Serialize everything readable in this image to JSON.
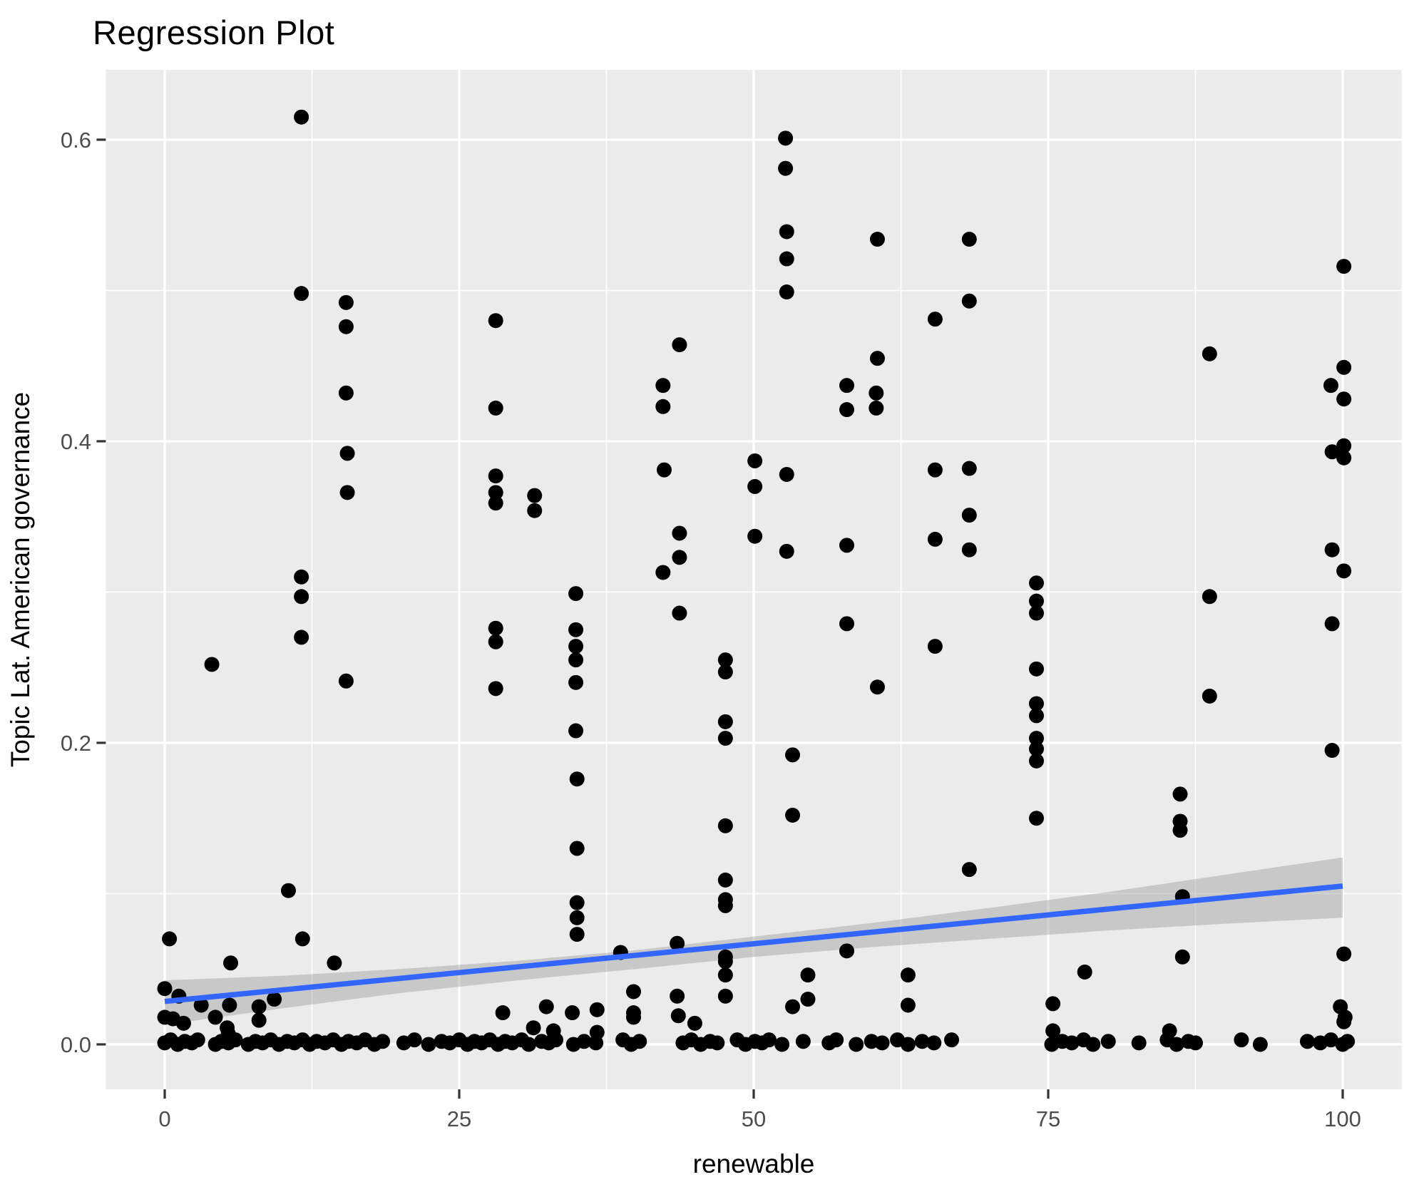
{
  "title": "Regression Plot",
  "chart_data": {
    "type": "scatter",
    "title": "Regression Plot",
    "xlabel": "renewable",
    "ylabel": "Topic Lat. American governance",
    "x_ticks": [
      0,
      25,
      50,
      75,
      100
    ],
    "x_tick_labels": [
      "0",
      "25",
      "50",
      "75",
      "100"
    ],
    "y_ticks": [
      0.0,
      0.2,
      0.4,
      0.6
    ],
    "y_tick_labels": [
      "0.0",
      "0.2",
      "0.4",
      "0.6"
    ],
    "x_minor_ticks": [
      12.5,
      37.5,
      62.5,
      87.5
    ],
    "y_minor_ticks": [
      0.1,
      0.3,
      0.5
    ],
    "xlim": [
      -5,
      105
    ],
    "ylim": [
      -0.0298,
      0.6463
    ],
    "grid": "white major and minor gridlines on grey panel",
    "legend_position": "none",
    "colors": {
      "panel_background": "#EBEBEB",
      "grid": "#FFFFFF",
      "point": "#000000",
      "regression_line": "#3366FF",
      "confidence_band": "#999999",
      "confidence_band_opacity": 0.42,
      "tick_label": "#4D4D4D",
      "tick_mark": "#333333",
      "axis_title": "#000000",
      "title": "#000000"
    },
    "regression_line": [
      [
        0,
        0.0285
      ],
      [
        100,
        0.105
      ]
    ],
    "confidence_band_upper": [
      [
        0,
        0.0425
      ],
      [
        10,
        0.0455
      ],
      [
        20,
        0.05
      ],
      [
        30,
        0.0555
      ],
      [
        40,
        0.0625
      ],
      [
        50,
        0.0715
      ],
      [
        60,
        0.0805
      ],
      [
        70,
        0.0905
      ],
      [
        80,
        0.101
      ],
      [
        90,
        0.1125
      ],
      [
        100,
        0.124
      ]
    ],
    "confidence_band_lower": [
      [
        0,
        0.013
      ],
      [
        10,
        0.024
      ],
      [
        20,
        0.034
      ],
      [
        30,
        0.0425
      ],
      [
        40,
        0.05
      ],
      [
        50,
        0.058
      ],
      [
        60,
        0.0645
      ],
      [
        70,
        0.07
      ],
      [
        80,
        0.0755
      ],
      [
        90,
        0.08
      ],
      [
        100,
        0.084
      ]
    ],
    "points": [
      [
        11.6,
        0.615
      ],
      [
        11.6,
        0.498
      ],
      [
        15.4,
        0.492
      ],
      [
        15.4,
        0.476
      ],
      [
        15.4,
        0.432
      ],
      [
        52.7,
        0.601
      ],
      [
        52.7,
        0.581
      ],
      [
        52.8,
        0.539
      ],
      [
        52.8,
        0.521
      ],
      [
        52.8,
        0.499
      ],
      [
        28.1,
        0.48
      ],
      [
        43.7,
        0.464
      ],
      [
        42.3,
        0.437
      ],
      [
        42.3,
        0.423
      ],
      [
        60.5,
        0.534
      ],
      [
        68.3,
        0.534
      ],
      [
        68.3,
        0.493
      ],
      [
        65.4,
        0.481
      ],
      [
        60.5,
        0.455
      ],
      [
        57.9,
        0.437
      ],
      [
        60.4,
        0.432
      ],
      [
        57.9,
        0.421
      ],
      [
        60.4,
        0.422
      ],
      [
        100.1,
        0.516
      ],
      [
        88.7,
        0.458
      ],
      [
        100.1,
        0.449
      ],
      [
        99.0,
        0.437
      ],
      [
        100.1,
        0.428
      ],
      [
        15.5,
        0.392
      ],
      [
        15.5,
        0.366
      ],
      [
        11.6,
        0.31
      ],
      [
        11.6,
        0.297
      ],
      [
        11.6,
        0.27
      ],
      [
        4.0,
        0.252
      ],
      [
        15.4,
        0.241
      ],
      [
        28.1,
        0.422
      ],
      [
        28.1,
        0.377
      ],
      [
        28.1,
        0.366
      ],
      [
        28.1,
        0.359
      ],
      [
        31.4,
        0.364
      ],
      [
        31.4,
        0.354
      ],
      [
        42.4,
        0.381
      ],
      [
        50.1,
        0.387
      ],
      [
        50.1,
        0.37
      ],
      [
        52.8,
        0.378
      ],
      [
        43.7,
        0.339
      ],
      [
        50.1,
        0.337
      ],
      [
        43.7,
        0.323
      ],
      [
        42.3,
        0.313
      ],
      [
        52.8,
        0.327
      ],
      [
        34.9,
        0.299
      ],
      [
        43.7,
        0.286
      ],
      [
        28.1,
        0.276
      ],
      [
        28.1,
        0.267
      ],
      [
        34.9,
        0.275
      ],
      [
        34.9,
        0.264
      ],
      [
        34.9,
        0.255
      ],
      [
        34.9,
        0.24
      ],
      [
        28.1,
        0.236
      ],
      [
        47.6,
        0.255
      ],
      [
        47.6,
        0.247
      ],
      [
        34.9,
        0.208
      ],
      [
        47.6,
        0.214
      ],
      [
        47.6,
        0.203
      ],
      [
        65.4,
        0.381
      ],
      [
        68.3,
        0.382
      ],
      [
        68.3,
        0.351
      ],
      [
        65.4,
        0.335
      ],
      [
        57.9,
        0.331
      ],
      [
        68.3,
        0.328
      ],
      [
        74.0,
        0.306
      ],
      [
        74.0,
        0.294
      ],
      [
        74.0,
        0.286
      ],
      [
        57.9,
        0.279
      ],
      [
        65.4,
        0.264
      ],
      [
        60.5,
        0.237
      ],
      [
        74.0,
        0.249
      ],
      [
        74.0,
        0.226
      ],
      [
        74.0,
        0.218
      ],
      [
        74.0,
        0.203
      ],
      [
        74.0,
        0.196
      ],
      [
        74.0,
        0.188
      ],
      [
        99.1,
        0.393
      ],
      [
        100.1,
        0.397
      ],
      [
        100.1,
        0.389
      ],
      [
        99.1,
        0.328
      ],
      [
        100.1,
        0.314
      ],
      [
        88.7,
        0.297
      ],
      [
        99.1,
        0.279
      ],
      [
        88.7,
        0.231
      ],
      [
        99.1,
        0.195
      ],
      [
        10.5,
        0.102
      ],
      [
        0.4,
        0.07
      ],
      [
        11.7,
        0.07
      ],
      [
        5.6,
        0.054
      ],
      [
        14.4,
        0.054
      ],
      [
        0.0,
        0.037
      ],
      [
        1.2,
        0.032
      ],
      [
        3.1,
        0.026
      ],
      [
        5.5,
        0.026
      ],
      [
        8.0,
        0.025
      ],
      [
        9.3,
        0.03
      ],
      [
        4.3,
        0.018
      ],
      [
        0.0,
        0.018
      ],
      [
        0.7,
        0.017
      ],
      [
        1.6,
        0.014
      ],
      [
        8.0,
        0.016
      ],
      [
        5.3,
        0.011
      ],
      [
        5.4,
        0.007
      ],
      [
        35.0,
        0.176
      ],
      [
        53.3,
        0.192
      ],
      [
        53.3,
        0.152
      ],
      [
        47.6,
        0.145
      ],
      [
        35.0,
        0.13
      ],
      [
        47.6,
        0.109
      ],
      [
        35.0,
        0.094
      ],
      [
        47.6,
        0.096
      ],
      [
        47.6,
        0.092
      ],
      [
        35.0,
        0.084
      ],
      [
        35.0,
        0.073
      ],
      [
        43.5,
        0.067
      ],
      [
        38.7,
        0.061
      ],
      [
        47.6,
        0.058
      ],
      [
        47.6,
        0.055
      ],
      [
        47.6,
        0.046
      ],
      [
        39.8,
        0.035
      ],
      [
        43.5,
        0.032
      ],
      [
        47.6,
        0.032
      ],
      [
        54.6,
        0.046
      ],
      [
        54.6,
        0.03
      ],
      [
        53.3,
        0.025
      ],
      [
        28.7,
        0.021
      ],
      [
        32.4,
        0.025
      ],
      [
        39.8,
        0.021
      ],
      [
        39.8,
        0.018
      ],
      [
        34.6,
        0.021
      ],
      [
        36.7,
        0.023
      ],
      [
        43.6,
        0.019
      ],
      [
        45.0,
        0.014
      ],
      [
        36.7,
        0.008
      ],
      [
        31.3,
        0.011
      ],
      [
        33.0,
        0.009
      ],
      [
        74.0,
        0.15
      ],
      [
        86.2,
        0.166
      ],
      [
        86.2,
        0.148
      ],
      [
        86.2,
        0.142
      ],
      [
        68.3,
        0.116
      ],
      [
        86.4,
        0.098
      ],
      [
        57.9,
        0.062
      ],
      [
        86.4,
        0.058
      ],
      [
        63.1,
        0.046
      ],
      [
        78.1,
        0.048
      ],
      [
        63.1,
        0.026
      ],
      [
        75.4,
        0.027
      ],
      [
        75.4,
        0.009
      ],
      [
        85.3,
        0.009
      ],
      [
        100.1,
        0.06
      ],
      [
        99.8,
        0.025
      ],
      [
        100.2,
        0.018
      ],
      [
        100.1,
        0.015
      ],
      [
        0.0,
        0.001
      ],
      [
        0.5,
        0.003
      ],
      [
        1.1,
        0.0
      ],
      [
        1.7,
        0.002
      ],
      [
        2.3,
        0.001
      ],
      [
        2.8,
        0.003
      ],
      [
        4.3,
        0.0
      ],
      [
        4.8,
        0.002
      ],
      [
        5.4,
        0.001
      ],
      [
        6.0,
        0.003
      ],
      [
        7.1,
        0.0
      ],
      [
        7.7,
        0.002
      ],
      [
        8.3,
        0.001
      ],
      [
        9.0,
        0.003
      ],
      [
        9.7,
        0.0
      ],
      [
        10.4,
        0.002
      ],
      [
        11.0,
        0.001
      ],
      [
        11.7,
        0.003
      ],
      [
        12.3,
        0.0
      ],
      [
        12.9,
        0.002
      ],
      [
        13.6,
        0.001
      ],
      [
        14.3,
        0.003
      ],
      [
        15.0,
        0.0
      ],
      [
        15.6,
        0.002
      ],
      [
        16.3,
        0.001
      ],
      [
        17.0,
        0.003
      ],
      [
        17.8,
        0.0
      ],
      [
        18.5,
        0.002
      ],
      [
        20.3,
        0.001
      ],
      [
        21.2,
        0.003
      ],
      [
        22.4,
        0.0
      ],
      [
        23.5,
        0.002
      ],
      [
        24.2,
        0.001
      ],
      [
        25.0,
        0.003
      ],
      [
        25.7,
        0.0
      ],
      [
        26.3,
        0.002
      ],
      [
        26.9,
        0.001
      ],
      [
        27.6,
        0.003
      ],
      [
        28.3,
        0.0
      ],
      [
        28.9,
        0.002
      ],
      [
        29.5,
        0.001
      ],
      [
        30.3,
        0.003
      ],
      [
        30.9,
        0.0
      ],
      [
        32.0,
        0.002
      ],
      [
        32.6,
        0.001
      ],
      [
        33.2,
        0.003
      ],
      [
        34.7,
        0.0
      ],
      [
        35.6,
        0.002
      ],
      [
        36.6,
        0.001
      ],
      [
        38.9,
        0.003
      ],
      [
        39.6,
        0.0
      ],
      [
        40.3,
        0.002
      ],
      [
        44.0,
        0.001
      ],
      [
        44.7,
        0.003
      ],
      [
        45.5,
        0.0
      ],
      [
        46.3,
        0.002
      ],
      [
        46.9,
        0.001
      ],
      [
        48.6,
        0.003
      ],
      [
        49.3,
        0.0
      ],
      [
        50.1,
        0.002
      ],
      [
        50.7,
        0.001
      ],
      [
        51.3,
        0.003
      ],
      [
        52.4,
        0.0
      ],
      [
        54.2,
        0.002
      ],
      [
        56.4,
        0.001
      ],
      [
        57.0,
        0.003
      ],
      [
        58.7,
        0.0
      ],
      [
        60.0,
        0.002
      ],
      [
        60.9,
        0.001
      ],
      [
        62.2,
        0.003
      ],
      [
        63.1,
        0.0
      ],
      [
        64.3,
        0.002
      ],
      [
        65.3,
        0.001
      ],
      [
        66.8,
        0.003
      ],
      [
        75.3,
        0.0
      ],
      [
        76.2,
        0.002
      ],
      [
        77.0,
        0.001
      ],
      [
        78.0,
        0.003
      ],
      [
        78.8,
        0.0
      ],
      [
        80.1,
        0.002
      ],
      [
        82.7,
        0.001
      ],
      [
        85.1,
        0.003
      ],
      [
        85.9,
        0.0
      ],
      [
        86.9,
        0.002
      ],
      [
        87.5,
        0.001
      ],
      [
        91.4,
        0.003
      ],
      [
        93.0,
        0.0
      ],
      [
        97.0,
        0.002
      ],
      [
        98.1,
        0.001
      ],
      [
        99.0,
        0.003
      ],
      [
        100.0,
        0.0
      ],
      [
        100.4,
        0.002
      ]
    ]
  }
}
